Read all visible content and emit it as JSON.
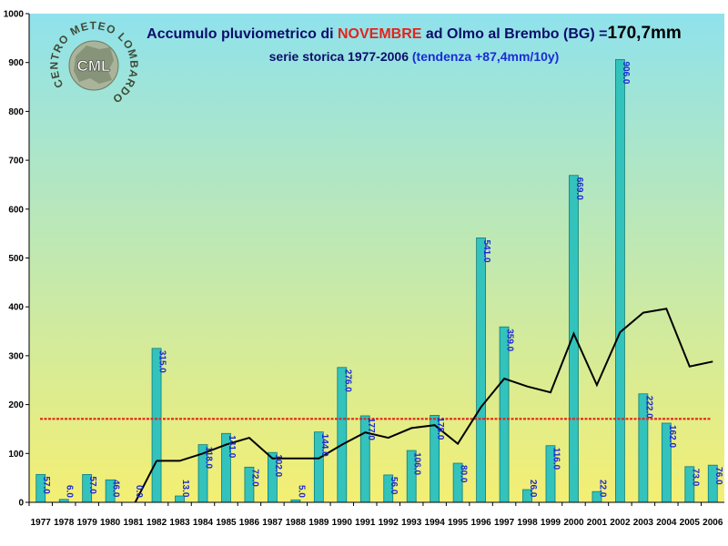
{
  "title_parts": {
    "prefix": "Accumulo pluviometrico di ",
    "month": "NOVEMBRE",
    "middle": " ad Olmo al Brembo (BG) =",
    "total": "170,7mm"
  },
  "subtitle_parts": {
    "text": "serie storica 1977-2006 ",
    "trend": "(tendenza +87,4mm/10y)"
  },
  "logo": {
    "arc_text": "CENTRO METEO LOMBARDO",
    "badge": "CML"
  },
  "colors": {
    "bar_fill": "#33c2bc",
    "bar_stroke": "#0c7f7a",
    "data_label": "#1a2bd6",
    "trend_line": "#000000",
    "average_line": "#e3231b",
    "month_text": "#e3231b",
    "trend_text": "#1a2bd6",
    "title_text": "#0d0d6b",
    "bg_top": "#8fe2ec",
    "bg_bottom": "#f4ef73"
  },
  "chart_data": {
    "type": "bar",
    "categories": [
      "1977",
      "1978",
      "1979",
      "1980",
      "1981",
      "1982",
      "1983",
      "1984",
      "1985",
      "1986",
      "1987",
      "1988",
      "1989",
      "1990",
      "1991",
      "1992",
      "1993",
      "1994",
      "1995",
      "1996",
      "1997",
      "1998",
      "1999",
      "2000",
      "2001",
      "2002",
      "2003",
      "2004",
      "2005",
      "2006"
    ],
    "values": [
      57.0,
      6.0,
      57.0,
      46.0,
      0.0,
      315.0,
      13.0,
      118.0,
      141.0,
      72.0,
      102.0,
      5.0,
      144.0,
      276.0,
      177.0,
      56.0,
      106.0,
      178.0,
      80.0,
      541.0,
      359.0,
      26.0,
      116.0,
      669.0,
      22.0,
      906.0,
      222.0,
      162.0,
      73.0,
      76.0
    ],
    "data_labels": [
      "57.0",
      "6.0",
      "57.0",
      "46.0",
      "0.0",
      "315.0",
      "13.0",
      "118.0",
      "141.0",
      "72.0",
      "102.0",
      "5.0",
      "144.0",
      "276.0",
      "177.0",
      "56.0",
      "106.0",
      "178.0",
      "80.0",
      "541.0",
      "359.0",
      "26.0",
      "116.0",
      "669.0",
      "22.0",
      "906.0",
      "222.0",
      "162.0",
      "73.0",
      "76.0"
    ],
    "trend_series": [
      null,
      null,
      null,
      null,
      null,
      85,
      85,
      100,
      118,
      132,
      90,
      90,
      90,
      118,
      143,
      132,
      152,
      158,
      120,
      195,
      253,
      237,
      225,
      345,
      240,
      348,
      388,
      396,
      278,
      288
    ],
    "average_value": 170.7,
    "ylim": [
      0,
      1000
    ],
    "yticks": [
      0,
      100,
      200,
      300,
      400,
      500,
      600,
      700,
      800,
      900,
      1000
    ],
    "grid": false
  }
}
